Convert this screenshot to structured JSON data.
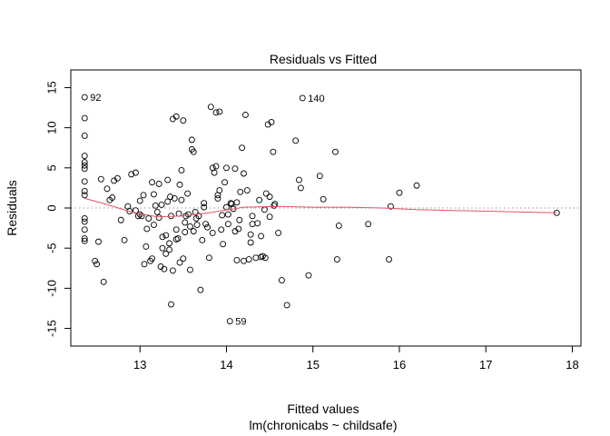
{
  "chart_data": {
    "type": "scatter",
    "title": "Residuals vs Fitted",
    "xlabel": "Fitted values",
    "subtitle": "lm(chronicabs ~ childsafe)",
    "ylabel": "Residuals",
    "xlim": [
      12.2,
      18.1
    ],
    "ylim": [
      -17.2,
      17.2
    ],
    "xticks": [
      "13",
      "14",
      "15",
      "16",
      "17",
      "18"
    ],
    "xtick_values": [
      13,
      14,
      15,
      16,
      17,
      18
    ],
    "yticks": [
      "-15",
      "-10",
      "-5",
      "0",
      "5",
      "10",
      "15"
    ],
    "ytick_values": [
      -15,
      -10,
      -5,
      0,
      5,
      10,
      15
    ],
    "reference_line": {
      "y": 0,
      "color": "#999999",
      "style": "dotted"
    },
    "smoother": {
      "color": "#df536b",
      "x": [
        12.36,
        12.6,
        12.9,
        13.2,
        13.5,
        13.8,
        14.2,
        14.6,
        15.0,
        15.4,
        15.8,
        16.2,
        16.6,
        17.0,
        17.4,
        17.82
      ],
      "y": [
        1.2,
        0.5,
        -0.5,
        -1.1,
        -1.0,
        -0.6,
        0.1,
        0.2,
        0.1,
        0.1,
        0.0,
        -0.2,
        -0.3,
        -0.4,
        -0.5,
        -0.6
      ]
    },
    "labeled_points": [
      {
        "label": "92",
        "x": 12.36,
        "y": 13.8
      },
      {
        "label": "140",
        "x": 14.88,
        "y": 13.7
      },
      {
        "label": "59",
        "x": 14.04,
        "y": -14.1
      }
    ],
    "series": [
      {
        "points": [
          [
            12.36,
            13.8
          ],
          [
            12.36,
            11.2
          ],
          [
            12.36,
            9.0
          ],
          [
            12.36,
            6.5
          ],
          [
            12.36,
            5.7
          ],
          [
            12.36,
            5.3
          ],
          [
            12.36,
            4.9
          ],
          [
            12.36,
            3.3
          ],
          [
            12.36,
            2.1
          ],
          [
            12.36,
            1.6
          ],
          [
            12.36,
            -1.3
          ],
          [
            12.36,
            -1.7
          ],
          [
            12.36,
            -2.7
          ],
          [
            12.36,
            -3.8
          ],
          [
            12.36,
            -4.1
          ],
          [
            12.48,
            -6.6
          ],
          [
            12.5,
            -7.0
          ],
          [
            12.52,
            -4.2
          ],
          [
            12.55,
            3.6
          ],
          [
            12.58,
            -9.2
          ],
          [
            12.62,
            2.4
          ],
          [
            12.65,
            1.0
          ],
          [
            12.68,
            1.3
          ],
          [
            12.7,
            3.4
          ],
          [
            12.74,
            3.7
          ],
          [
            12.78,
            -1.5
          ],
          [
            12.82,
            -4.0
          ],
          [
            12.86,
            0.2
          ],
          [
            12.88,
            -0.4
          ],
          [
            12.9,
            4.2
          ],
          [
            12.95,
            4.4
          ],
          [
            12.98,
            -1.0
          ],
          [
            13.0,
            0.9
          ],
          [
            13.02,
            -1.0
          ],
          [
            13.05,
            -7.0
          ],
          [
            13.07,
            -4.8
          ],
          [
            13.1,
            -1.3
          ],
          [
            13.12,
            -6.6
          ],
          [
            13.14,
            3.2
          ],
          [
            13.16,
            1.7
          ],
          [
            13.18,
            0.3
          ],
          [
            13.22,
            3.0
          ],
          [
            13.24,
            -7.3
          ],
          [
            13.26,
            -5.0
          ],
          [
            13.28,
            -7.6
          ],
          [
            13.3,
            -3.4
          ],
          [
            13.32,
            3.5
          ],
          [
            13.34,
            -5.2
          ],
          [
            13.36,
            -1.0
          ],
          [
            13.38,
            -7.8
          ],
          [
            13.4,
            1.2
          ],
          [
            13.42,
            -2.7
          ],
          [
            13.44,
            -3.8
          ],
          [
            13.46,
            2.9
          ],
          [
            13.48,
            4.7
          ],
          [
            13.5,
            -6.3
          ],
          [
            13.52,
            -1.8
          ],
          [
            13.55,
            1.8
          ],
          [
            13.58,
            -7.7
          ],
          [
            13.6,
            8.5
          ],
          [
            13.62,
            7.0
          ],
          [
            13.64,
            -0.5
          ],
          [
            13.66,
            -2.1
          ],
          [
            13.7,
            -10.2
          ],
          [
            13.74,
            0.6
          ],
          [
            13.76,
            -2.0
          ],
          [
            13.8,
            -6.2
          ],
          [
            13.82,
            12.6
          ],
          [
            13.84,
            5.0
          ],
          [
            13.86,
            4.4
          ],
          [
            13.88,
            11.9
          ],
          [
            13.9,
            1.2
          ],
          [
            13.92,
            2.2
          ],
          [
            13.94,
            -2.7
          ],
          [
            13.96,
            -4.5
          ],
          [
            13.98,
            3.2
          ],
          [
            14.0,
            5.0
          ],
          [
            14.02,
            -2.0
          ],
          [
            14.04,
            -14.1
          ],
          [
            14.06,
            0.5
          ],
          [
            14.08,
            -0.1
          ],
          [
            14.1,
            4.9
          ],
          [
            14.12,
            -6.5
          ],
          [
            14.14,
            -2.6
          ],
          [
            14.16,
            2.0
          ],
          [
            14.18,
            7.5
          ],
          [
            14.2,
            4.3
          ],
          [
            14.22,
            11.6
          ],
          [
            14.24,
            2.2
          ],
          [
            14.26,
            -6.4
          ],
          [
            14.28,
            -3.3
          ],
          [
            14.3,
            -1.0
          ],
          [
            14.34,
            -6.2
          ],
          [
            14.38,
            1.0
          ],
          [
            14.4,
            -3.5
          ],
          [
            14.42,
            -6.0
          ],
          [
            14.44,
            -0.2
          ],
          [
            14.46,
            1.8
          ],
          [
            14.48,
            10.4
          ],
          [
            14.5,
            1.4
          ],
          [
            14.52,
            10.7
          ],
          [
            14.54,
            7.0
          ],
          [
            14.56,
            0.5
          ],
          [
            14.6,
            -3.1
          ],
          [
            14.64,
            -9.0
          ],
          [
            14.7,
            -12.1
          ],
          [
            14.8,
            8.4
          ],
          [
            14.84,
            3.5
          ],
          [
            14.86,
            2.5
          ],
          [
            14.88,
            13.7
          ],
          [
            14.95,
            -8.4
          ],
          [
            15.08,
            4.0
          ],
          [
            15.12,
            1.1
          ],
          [
            15.26,
            7.0
          ],
          [
            15.28,
            -6.4
          ],
          [
            15.3,
            -2.2
          ],
          [
            15.64,
            -2.0
          ],
          [
            15.88,
            -6.4
          ],
          [
            15.9,
            0.2
          ],
          [
            16.0,
            1.9
          ],
          [
            16.2,
            2.8
          ],
          [
            17.82,
            -0.6
          ],
          [
            12.95,
            -0.3
          ],
          [
            13.0,
            -0.8
          ],
          [
            13.04,
            1.6
          ],
          [
            13.08,
            -2.6
          ],
          [
            13.2,
            -0.5
          ],
          [
            13.25,
            0.4
          ],
          [
            13.3,
            -5.7
          ],
          [
            13.35,
            1.4
          ],
          [
            13.38,
            11.1
          ],
          [
            13.42,
            11.4
          ],
          [
            13.45,
            -0.7
          ],
          [
            13.5,
            10.9
          ],
          [
            13.53,
            -1.0
          ],
          [
            13.56,
            -0.8
          ],
          [
            13.6,
            7.3
          ],
          [
            13.65,
            -1.3
          ],
          [
            13.72,
            -4.0
          ],
          [
            13.78,
            -2.4
          ],
          [
            13.84,
            -3.1
          ],
          [
            13.88,
            5.2
          ],
          [
            13.95,
            -0.9
          ],
          [
            14.0,
            0.1
          ],
          [
            14.05,
            0.6
          ],
          [
            14.1,
            -2.9
          ],
          [
            14.15,
            -1.5
          ],
          [
            14.2,
            -6.6
          ],
          [
            14.28,
            -4.3
          ],
          [
            14.36,
            -1.9
          ],
          [
            14.4,
            -6.1
          ],
          [
            14.45,
            -6.2
          ],
          [
            14.5,
            -1.1
          ],
          [
            14.55,
            0.3
          ],
          [
            13.16,
            -2.1
          ],
          [
            13.26,
            -3.6
          ],
          [
            13.34,
            -4.4
          ],
          [
            13.46,
            -6.8
          ],
          [
            13.52,
            -3.0
          ],
          [
            13.62,
            -2.9
          ],
          [
            13.74,
            0.1
          ],
          [
            13.9,
            1.6
          ],
          [
            14.02,
            -0.8
          ],
          [
            14.12,
            0.7
          ],
          [
            13.14,
            -6.3
          ],
          [
            13.22,
            -1.2
          ],
          [
            13.42,
            -3.9
          ],
          [
            13.48,
            1.0
          ],
          [
            13.58,
            -2.3
          ],
          [
            13.68,
            -1.0
          ],
          [
            13.92,
            12.0
          ],
          [
            14.3,
            -2.0
          ],
          [
            13.36,
            -12.0
          ],
          [
            13.32,
            0.8
          ]
        ]
      }
    ]
  }
}
